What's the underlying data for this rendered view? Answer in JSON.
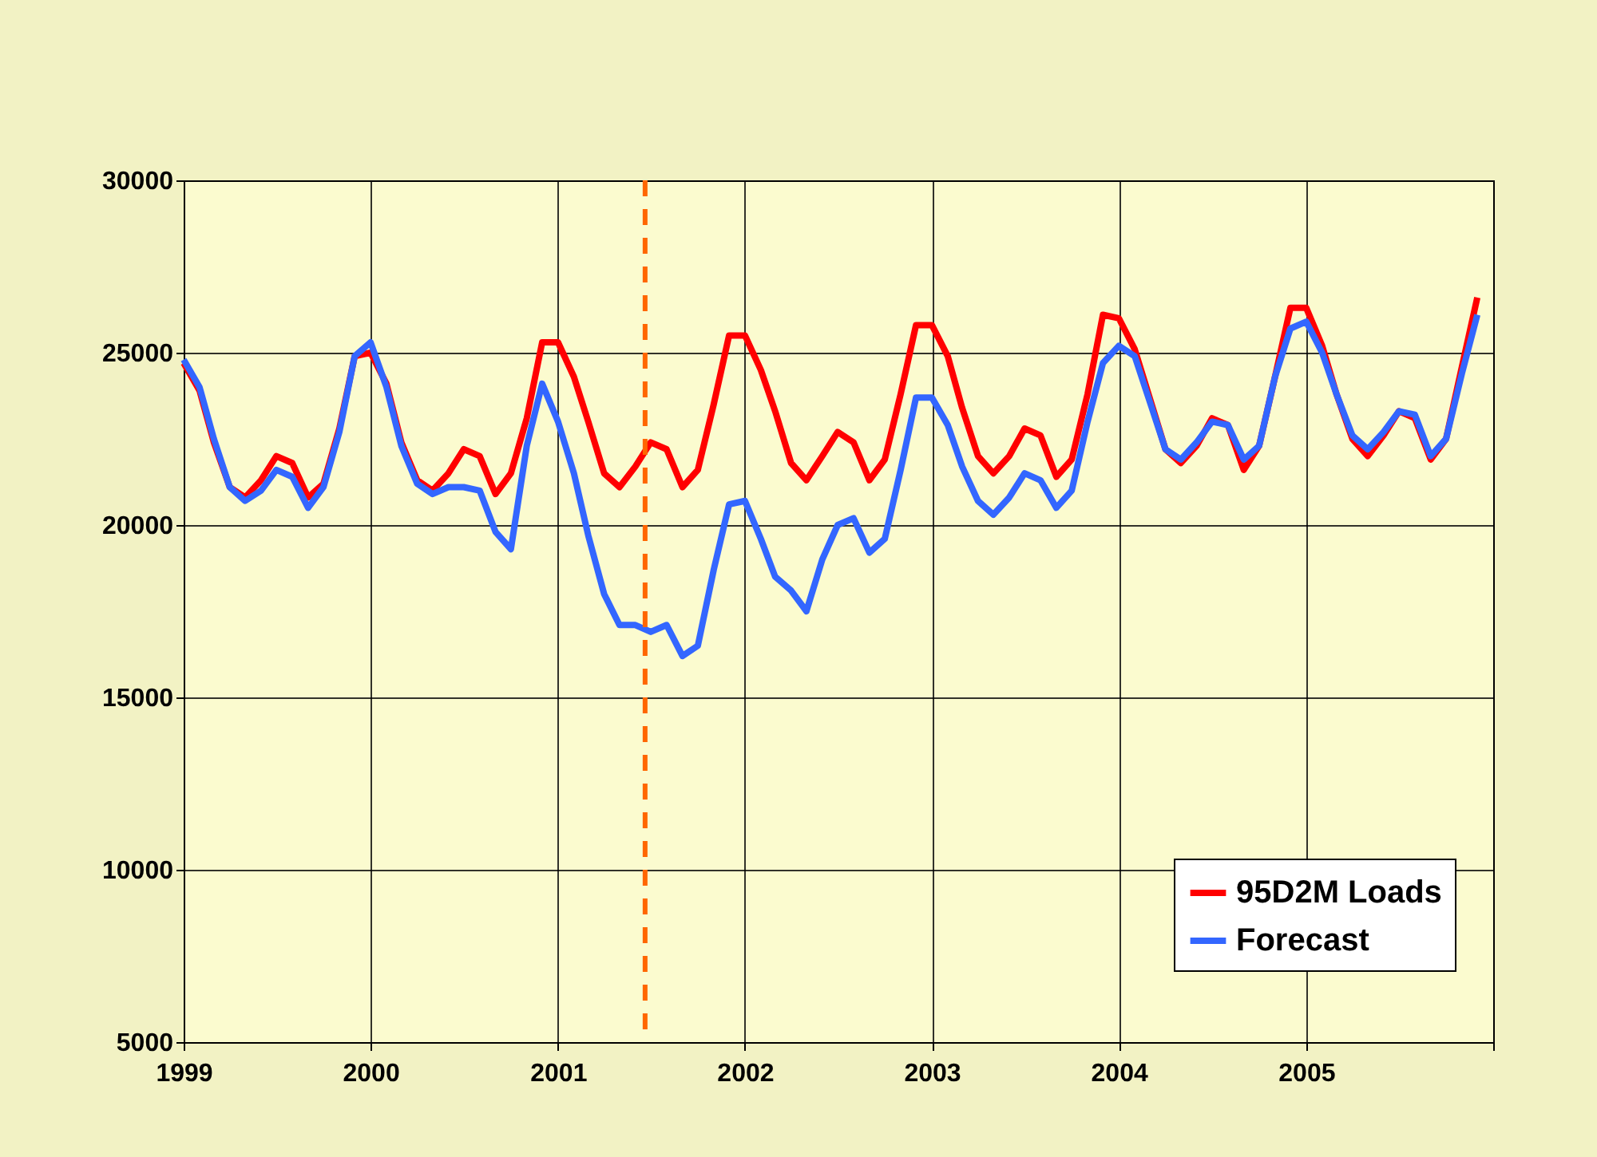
{
  "chart_data": {
    "type": "line",
    "x": [
      "1999-01",
      "1999-02",
      "1999-03",
      "1999-04",
      "1999-05",
      "1999-06",
      "1999-07",
      "1999-08",
      "1999-09",
      "1999-10",
      "1999-11",
      "1999-12",
      "2000-01",
      "2000-02",
      "2000-03",
      "2000-04",
      "2000-05",
      "2000-06",
      "2000-07",
      "2000-08",
      "2000-09",
      "2000-10",
      "2000-11",
      "2000-12",
      "2001-01",
      "2001-02",
      "2001-03",
      "2001-04",
      "2001-05",
      "2001-06",
      "2001-07",
      "2001-08",
      "2001-09",
      "2001-10",
      "2001-11",
      "2001-12",
      "2002-01",
      "2002-02",
      "2002-03",
      "2002-04",
      "2002-05",
      "2002-06",
      "2002-07",
      "2002-08",
      "2002-09",
      "2002-10",
      "2002-11",
      "2002-12",
      "2003-01",
      "2003-02",
      "2003-03",
      "2003-04",
      "2003-05",
      "2003-06",
      "2003-07",
      "2003-08",
      "2003-09",
      "2003-10",
      "2003-11",
      "2003-12",
      "2004-01",
      "2004-02",
      "2004-03",
      "2004-04",
      "2004-05",
      "2004-06",
      "2004-07",
      "2004-08",
      "2004-09",
      "2004-10",
      "2004-11",
      "2004-12",
      "2005-01",
      "2005-02",
      "2005-03",
      "2005-04",
      "2005-05",
      "2005-06",
      "2005-07",
      "2005-08",
      "2005-09",
      "2005-10",
      "2005-11",
      "2005-12"
    ],
    "series": [
      {
        "name": "95D2M Loads",
        "color": "#ff0000",
        "values": [
          24700,
          23900,
          22400,
          21100,
          20800,
          21300,
          22000,
          21800,
          20800,
          21200,
          22800,
          24900,
          25000,
          24100,
          22400,
          21300,
          21000,
          21500,
          22200,
          22000,
          20900,
          21500,
          23100,
          25300,
          25300,
          24300,
          23000,
          21500,
          21100,
          21700,
          22400,
          22200,
          21100,
          21600,
          23500,
          25500,
          25500,
          24500,
          23300,
          21800,
          21300,
          22000,
          22700,
          22400,
          21300,
          21900,
          23800,
          25800,
          25800,
          24900,
          23400,
          22000,
          21500,
          22000,
          22800,
          22600,
          21400,
          21900,
          23800,
          26100,
          26000,
          25100,
          23700,
          22200,
          21800,
          22300,
          23100,
          22900,
          21600,
          22300,
          24300,
          26300,
          26300,
          25200,
          23800,
          22500,
          22000,
          22600,
          23300,
          23100,
          21900,
          22500,
          24600,
          26600
        ]
      },
      {
        "name": "Forecast",
        "color": "#3366ff",
        "values": [
          24800,
          24000,
          22500,
          21100,
          20700,
          21000,
          21600,
          21400,
          20500,
          21100,
          22700,
          24900,
          25300,
          24000,
          22300,
          21200,
          20900,
          21100,
          21100,
          21000,
          19800,
          19300,
          22300,
          24100,
          23000,
          21500,
          19700,
          18000,
          17100,
          17100,
          16900,
          17100,
          16200,
          16500,
          18700,
          20600,
          20700,
          19600,
          18500,
          18100,
          17500,
          19000,
          20000,
          20200,
          19200,
          19600,
          21600,
          23700,
          23700,
          22900,
          21700,
          20700,
          20300,
          20800,
          21500,
          21300,
          20500,
          21000,
          23000,
          24700,
          25200,
          24900,
          23600,
          22200,
          21900,
          22400,
          23000,
          22900,
          21900,
          22300,
          24300,
          25700,
          25900,
          25000,
          23800,
          22600,
          22200,
          22700,
          23300,
          23200,
          22000,
          22500,
          24400,
          26100
        ]
      }
    ],
    "xlim": [
      "1999",
      "2006"
    ],
    "xticks": [
      "1999",
      "2000",
      "2001",
      "2002",
      "2003",
      "2004",
      "2005",
      {
        "value": "2006",
        "label": null
      }
    ],
    "ylim": [
      5000,
      30000
    ],
    "yticks": [
      5000,
      10000,
      15000,
      20000,
      25000,
      30000
    ],
    "ref_lines": [
      {
        "axis": "x",
        "value": "2001-06-20",
        "color": "#ff6600",
        "line_style": "dashed"
      }
    ],
    "grid": true,
    "legend": "bottom right",
    "marker": "none",
    "line_style": "solid"
  }
}
